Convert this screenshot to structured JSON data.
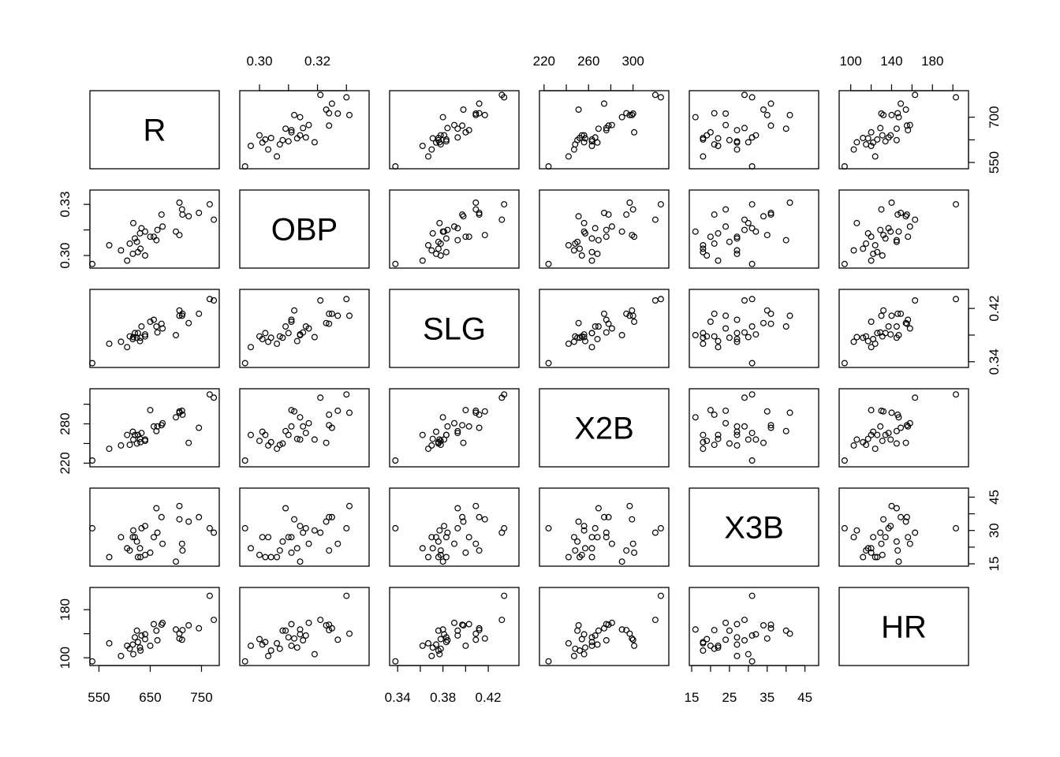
{
  "chart_data": {
    "type": "scatter",
    "title": "",
    "variables": [
      {
        "name": "R",
        "range": [
          537,
          780
        ],
        "ticks": [
          550,
          700
        ],
        "tick_labels": [
          "550",
          "700"
        ],
        "mid_ticks": [
          550,
          625,
          700
        ],
        "x_ticks": [
          550,
          650,
          750
        ],
        "x_tick_labels": [
          "550",
          "650",
          "750"
        ]
      },
      {
        "name": "OBP",
        "range": [
          0.294,
          0.337
        ],
        "ticks": [
          0.3,
          0.33
        ],
        "tick_labels": [
          "0.30",
          "0.33"
        ],
        "mid_ticks": [
          0.3,
          0.315,
          0.33
        ],
        "x_ticks": [
          0.3,
          0.31,
          0.32,
          0.33
        ],
        "x_tick_labels": [
          "0.30",
          "",
          "0.32",
          ""
        ]
      },
      {
        "name": "SLG",
        "range": [
          0.335,
          0.445
        ],
        "ticks": [
          0.34,
          0.42
        ],
        "tick_labels": [
          "0.34",
          "0.42"
        ],
        "mid_ticks": [
          0.34,
          0.38,
          0.42
        ],
        "x_ticks": [
          0.34,
          0.36,
          0.38,
          0.4,
          0.42
        ],
        "x_tick_labels": [
          "0.34",
          "",
          "0.38",
          "",
          "0.42"
        ]
      },
      {
        "name": "X2B",
        "range": [
          218,
          330
        ],
        "ticks": [
          220,
          250,
          280
        ],
        "tick_labels": [
          "220",
          "",
          "280"
        ],
        "mid_ticks": [
          220,
          250,
          280,
          310
        ],
        "x_ticks": [
          220,
          240,
          260,
          280,
          300
        ],
        "x_tick_labels": [
          "220",
          "",
          "260",
          "",
          "300"
        ]
      },
      {
        "name": "X3B",
        "range": [
          15,
          48
        ],
        "ticks": [
          15,
          30,
          45
        ],
        "tick_labels": [
          "15",
          "30",
          "45"
        ],
        "mid_ticks": [
          15,
          22.5,
          30,
          37.5,
          45
        ],
        "x_ticks": [
          15,
          20,
          25,
          30,
          35,
          40,
          45
        ],
        "x_tick_labels": [
          "15",
          "",
          "25",
          "",
          "35",
          "",
          "45"
        ]
      },
      {
        "name": "HR",
        "range": [
          91,
          213
        ],
        "ticks": [
          100,
          140,
          180
        ],
        "tick_labels": [
          "100",
          "",
          "180"
        ],
        "mid_ticks": [
          100,
          140,
          180
        ],
        "x_ticks": [
          100,
          120,
          140,
          160,
          180,
          200
        ],
        "x_tick_labels": [
          "100",
          "",
          "140",
          "",
          "180",
          ""
        ]
      }
    ],
    "right_axis_labels": [
      {
        "ticks": [
          550,
          625,
          700
        ],
        "tick_labels": [
          "550",
          "",
          "700"
        ]
      },
      null,
      {
        "ticks": [
          0.34,
          0.38,
          0.42
        ],
        "tick_labels": [
          "0.34",
          "",
          "0.42"
        ]
      },
      null,
      {
        "ticks": [
          15,
          22.5,
          30,
          37.5,
          45
        ],
        "tick_labels": [
          "15",
          "",
          "30",
          "",
          "45"
        ]
      },
      null
    ],
    "left_axis_labels": [
      null,
      {
        "ticks": [
          0.3,
          0.315,
          0.33
        ],
        "tick_labels": [
          "0.30",
          "",
          "0.33"
        ]
      },
      null,
      {
        "ticks": [
          220,
          250,
          280,
          310
        ],
        "tick_labels": [
          "220",
          "",
          "280",
          ""
        ]
      },
      null,
      {
        "ticks": [
          100,
          140,
          180
        ],
        "tick_labels": [
          "100",
          "",
          "180"
        ]
      }
    ],
    "observations": {
      "R": [
        713,
        707,
        745,
        712,
        774,
        633,
        707,
        766,
        672,
        657,
        725,
        626,
        674,
        650,
        664,
        616,
        640,
        624,
        620,
        700,
        662,
        610,
        630,
        640,
        570,
        593,
        537,
        617,
        605,
        631
      ],
      "OBP": [
        0.324,
        0.312,
        0.325,
        0.327,
        0.321,
        0.316,
        0.331,
        0.33,
        0.324,
        0.311,
        0.323,
        0.302,
        0.317,
        0.311,
        0.315,
        0.301,
        0.314,
        0.308,
        0.31,
        0.314,
        0.309,
        0.307,
        0.313,
        0.3,
        0.306,
        0.303,
        0.295,
        0.319,
        0.297,
        0.304
      ],
      "SLG": [
        0.412,
        0.417,
        0.412,
        0.409,
        0.432,
        0.393,
        0.409,
        0.434,
        0.397,
        0.403,
        0.398,
        0.383,
        0.39,
        0.4,
        0.384,
        0.374,
        0.381,
        0.376,
        0.383,
        0.38,
        0.393,
        0.378,
        0.371,
        0.378,
        0.367,
        0.37,
        0.338,
        0.377,
        0.362,
        0.376
      ],
      "X2B": [
        294,
        299,
        274,
        300,
        320,
        266,
        297,
        325,
        278,
        276,
        251,
        263,
        281,
        301,
        276,
        268,
        256,
        250,
        263,
        290,
        269,
        248,
        257,
        254,
        242,
        247,
        224,
        256,
        263,
        252
      ],
      "X3B": [
        21,
        35,
        36,
        24,
        29,
        31,
        41,
        31,
        36,
        27,
        34,
        18,
        24,
        20,
        29,
        27,
        32,
        25,
        27,
        16,
        40,
        21,
        22,
        19,
        18,
        27,
        31,
        30,
        22,
        18
      ],
      "HR": [
        146,
        132,
        149,
        130,
        163,
        137,
        140,
        203,
        155,
        156,
        154,
        126,
        158,
        120,
        129,
        122,
        139,
        145,
        134,
        147,
        145,
        115,
        117,
        131,
        124,
        103,
        94,
        106,
        120,
        112
      ]
    },
    "grid": false,
    "legend": "none"
  }
}
